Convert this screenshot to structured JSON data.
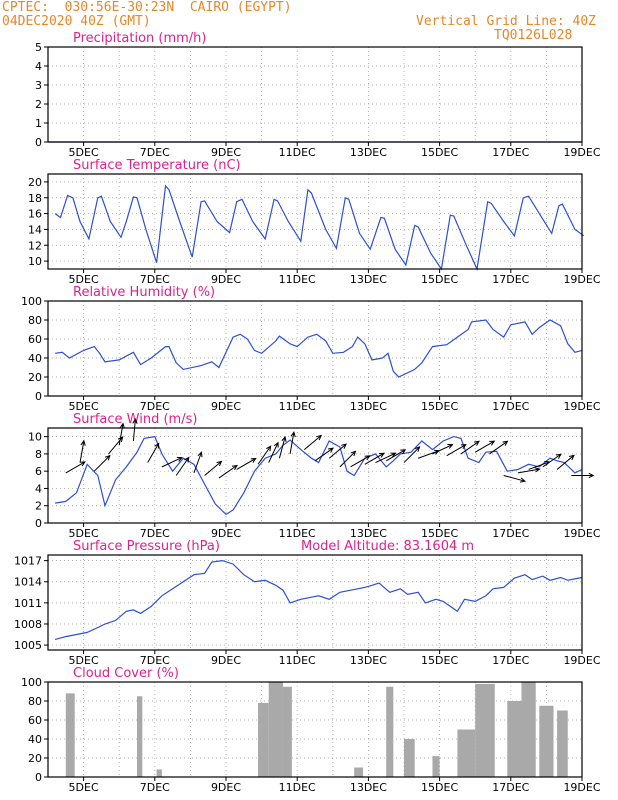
{
  "header": {
    "line1_left": "CPTEC:  030:56E-30:23N  CAIRO (EGYPT)",
    "line2_left": "04DEC2020 40Z (GMT)",
    "line1_right": "Vertical Grid Line: 40Z",
    "line2_right": "TQ0126L028"
  },
  "colors": {
    "header": "#e8862a",
    "title": "#e0208c",
    "line": "#2c4fd8",
    "bar": "#a9a9a9",
    "frame": "#000000"
  },
  "chart_data": [
    {
      "type": "line",
      "title": "Precipitation (mm/h)",
      "x_tick_labels": [
        "5DEC",
        "7DEC",
        "9DEC",
        "11DEC",
        "13DEC",
        "15DEC",
        "17DEC",
        "19DEC"
      ],
      "y_ticks": [
        0,
        1,
        2,
        3,
        4,
        5
      ],
      "ylim": [
        0,
        5
      ],
      "grid": true,
      "values": [
        0,
        0,
        0,
        0,
        0,
        0,
        0,
        0,
        0,
        0,
        0,
        0,
        0,
        0,
        0,
        0,
        0,
        0,
        0,
        0,
        0,
        0,
        0,
        0,
        0,
        0,
        0,
        0,
        0,
        0,
        0,
        0,
        0,
        0,
        0,
        0,
        0,
        0,
        0,
        0,
        0,
        0,
        0,
        0,
        0,
        0,
        0,
        0,
        0,
        0,
        0,
        0,
        0,
        0,
        0,
        0,
        0,
        0,
        0,
        0
      ]
    },
    {
      "type": "line",
      "title": "Surface Temperature (nC)",
      "x_tick_labels": [
        "5DEC",
        "7DEC",
        "9DEC",
        "11DEC",
        "13DEC",
        "15DEC",
        "17DEC",
        "19DEC"
      ],
      "y_ticks": [
        10,
        12,
        14,
        16,
        18,
        20
      ],
      "ylim": [
        9,
        21
      ],
      "grid": true,
      "points": [
        [
          4.2,
          16
        ],
        [
          4.35,
          15.5
        ],
        [
          4.55,
          18.3
        ],
        [
          4.7,
          18
        ],
        [
          4.9,
          15
        ],
        [
          5.15,
          12.8
        ],
        [
          5.4,
          18
        ],
        [
          5.5,
          18.2
        ],
        [
          5.75,
          15
        ],
        [
          6.05,
          13
        ],
        [
          6.2,
          15
        ],
        [
          6.4,
          18.1
        ],
        [
          6.5,
          18
        ],
        [
          6.75,
          14
        ],
        [
          7.05,
          9.8
        ],
        [
          7.3,
          19.5
        ],
        [
          7.4,
          19
        ],
        [
          7.7,
          15
        ],
        [
          8.05,
          10.5
        ],
        [
          8.3,
          17.5
        ],
        [
          8.4,
          17.6
        ],
        [
          8.75,
          15
        ],
        [
          9.1,
          13.6
        ],
        [
          9.3,
          17.5
        ],
        [
          9.45,
          17.8
        ],
        [
          9.75,
          15
        ],
        [
          10.1,
          12.8
        ],
        [
          10.35,
          17.8
        ],
        [
          10.45,
          17.6
        ],
        [
          10.75,
          15
        ],
        [
          11.1,
          12.5
        ],
        [
          11.3,
          19
        ],
        [
          11.4,
          18.6
        ],
        [
          11.8,
          14
        ],
        [
          12.1,
          11.6
        ],
        [
          12.35,
          18
        ],
        [
          12.45,
          17.8
        ],
        [
          12.75,
          13.5
        ],
        [
          13.05,
          11.5
        ],
        [
          13.35,
          15.5
        ],
        [
          13.45,
          15.4
        ],
        [
          13.75,
          11.5
        ],
        [
          14.05,
          9.5
        ],
        [
          14.3,
          14.5
        ],
        [
          14.4,
          14.3
        ],
        [
          14.75,
          11
        ],
        [
          15.05,
          8.8
        ],
        [
          15.3,
          15.8
        ],
        [
          15.4,
          15.7
        ],
        [
          15.75,
          12
        ],
        [
          16.05,
          9
        ],
        [
          16.35,
          17.5
        ],
        [
          16.45,
          17.3
        ],
        [
          16.8,
          15
        ],
        [
          17.1,
          13.2
        ],
        [
          17.35,
          18
        ],
        [
          17.5,
          18.2
        ],
        [
          17.8,
          16
        ],
        [
          18.15,
          13.5
        ],
        [
          18.35,
          17
        ],
        [
          18.45,
          17.2
        ],
        [
          18.8,
          14
        ],
        [
          19.05,
          13.2
        ]
      ]
    },
    {
      "type": "line",
      "title": "Relative Humidity (%)",
      "x_tick_labels": [
        "5DEC",
        "7DEC",
        "9DEC",
        "11DEC",
        "13DEC",
        "15DEC",
        "17DEC",
        "19DEC"
      ],
      "y_ticks": [
        0,
        20,
        40,
        60,
        80,
        100
      ],
      "ylim": [
        0,
        100
      ],
      "grid": true,
      "points": [
        [
          4.2,
          45
        ],
        [
          4.4,
          46
        ],
        [
          4.6,
          40
        ],
        [
          5,
          48
        ],
        [
          5.3,
          52
        ],
        [
          5.45,
          45
        ],
        [
          5.6,
          36
        ],
        [
          6.0,
          38
        ],
        [
          6.4,
          46
        ],
        [
          6.6,
          33
        ],
        [
          6.9,
          40
        ],
        [
          7.3,
          52
        ],
        [
          7.4,
          52
        ],
        [
          7.6,
          35
        ],
        [
          7.8,
          28
        ],
        [
          8.3,
          32
        ],
        [
          8.6,
          36
        ],
        [
          8.8,
          30
        ],
        [
          9.2,
          62
        ],
        [
          9.4,
          65
        ],
        [
          9.6,
          60
        ],
        [
          9.8,
          48
        ],
        [
          10.0,
          45
        ],
        [
          10.4,
          58
        ],
        [
          10.5,
          63
        ],
        [
          10.8,
          55
        ],
        [
          11.0,
          52
        ],
        [
          11.3,
          62
        ],
        [
          11.55,
          65
        ],
        [
          11.8,
          58
        ],
        [
          12.0,
          45
        ],
        [
          12.3,
          46
        ],
        [
          12.55,
          52
        ],
        [
          12.7,
          62
        ],
        [
          12.9,
          55
        ],
        [
          13.1,
          38
        ],
        [
          13.4,
          40
        ],
        [
          13.55,
          45
        ],
        [
          13.7,
          26
        ],
        [
          13.85,
          20
        ],
        [
          14.3,
          28
        ],
        [
          14.5,
          35
        ],
        [
          14.8,
          52
        ],
        [
          15.2,
          54
        ],
        [
          15.5,
          62
        ],
        [
          15.8,
          70
        ],
        [
          15.9,
          78
        ],
        [
          16.3,
          80
        ],
        [
          16.5,
          70
        ],
        [
          16.8,
          62
        ],
        [
          17.0,
          75
        ],
        [
          17.4,
          78
        ],
        [
          17.6,
          65
        ],
        [
          17.8,
          72
        ],
        [
          18.1,
          80
        ],
        [
          18.4,
          74
        ],
        [
          18.6,
          55
        ],
        [
          18.8,
          46
        ],
        [
          19.0,
          48
        ]
      ]
    },
    {
      "type": "line",
      "title": "Surface Wind (m/s)",
      "x_tick_labels": [
        "5DEC",
        "7DEC",
        "9DEC",
        "11DEC",
        "13DEC",
        "15DEC",
        "17DEC",
        "19DEC"
      ],
      "y_ticks": [
        0,
        2,
        4,
        6,
        8,
        10
      ],
      "ylim": [
        0,
        11
      ],
      "grid": true,
      "points": [
        [
          4.2,
          2.3
        ],
        [
          4.5,
          2.5
        ],
        [
          4.8,
          3.5
        ],
        [
          5.1,
          6.8
        ],
        [
          5.4,
          5.5
        ],
        [
          5.6,
          2
        ],
        [
          5.9,
          5
        ],
        [
          6.2,
          6.5
        ],
        [
          6.5,
          8.2
        ],
        [
          6.7,
          9.8
        ],
        [
          7.0,
          10
        ],
        [
          7.2,
          8
        ],
        [
          7.5,
          6
        ],
        [
          7.8,
          7.5
        ],
        [
          8.1,
          6.8
        ],
        [
          8.4,
          4.5
        ],
        [
          8.7,
          2.2
        ],
        [
          9.0,
          1
        ],
        [
          9.2,
          1.5
        ],
        [
          9.5,
          3.5
        ],
        [
          9.8,
          6
        ],
        [
          10.1,
          7.5
        ],
        [
          10.4,
          8
        ],
        [
          10.6,
          9
        ],
        [
          10.8,
          9.6
        ],
        [
          11.1,
          8.5
        ],
        [
          11.4,
          7.5
        ],
        [
          11.6,
          7
        ],
        [
          11.9,
          9.5
        ],
        [
          12.2,
          8.8
        ],
        [
          12.4,
          6
        ],
        [
          12.6,
          5.5
        ],
        [
          12.9,
          7.5
        ],
        [
          13.2,
          8
        ],
        [
          13.5,
          6.5
        ],
        [
          13.7,
          7.2
        ],
        [
          13.9,
          8
        ],
        [
          14.2,
          8.2
        ],
        [
          14.5,
          9.5
        ],
        [
          14.8,
          8.5
        ],
        [
          15.1,
          9.5
        ],
        [
          15.4,
          10
        ],
        [
          15.6,
          9.8
        ],
        [
          15.8,
          7.5
        ],
        [
          16.1,
          7
        ],
        [
          16.3,
          8.2
        ],
        [
          16.6,
          8.3
        ],
        [
          16.9,
          6
        ],
        [
          17.2,
          6.2
        ],
        [
          17.5,
          6.8
        ],
        [
          17.8,
          6.5
        ],
        [
          18.1,
          7.5
        ],
        [
          18.3,
          7.2
        ],
        [
          18.5,
          7
        ],
        [
          18.8,
          5.8
        ],
        [
          19.0,
          6.2
        ]
      ],
      "vectors": [
        [
          4.5,
          5.8,
          30
        ],
        [
          4.9,
          7,
          80
        ],
        [
          5.3,
          6,
          45
        ],
        [
          5.7,
          8,
          50
        ],
        [
          6.0,
          9,
          80
        ],
        [
          6.4,
          9.5,
          85
        ],
        [
          6.8,
          7,
          60
        ],
        [
          7.2,
          6.5,
          25
        ],
        [
          7.6,
          5.5,
          55
        ],
        [
          8.1,
          5.8,
          70
        ],
        [
          8.4,
          5.5,
          40
        ],
        [
          8.8,
          5.2,
          35
        ],
        [
          9.3,
          6.2,
          30
        ],
        [
          9.9,
          6.8,
          55
        ],
        [
          10.2,
          7,
          65
        ],
        [
          10.5,
          7.5,
          75
        ],
        [
          10.8,
          8,
          80
        ],
        [
          11.2,
          8.5,
          40
        ],
        [
          11.5,
          7.2,
          35
        ],
        [
          11.9,
          7.5,
          40
        ],
        [
          12.2,
          6.5,
          45
        ],
        [
          12.5,
          6.5,
          30
        ],
        [
          12.9,
          6.8,
          30
        ],
        [
          13.2,
          7,
          25
        ],
        [
          13.5,
          7.2,
          30
        ],
        [
          14.0,
          7,
          45
        ],
        [
          14.4,
          7.5,
          20
        ],
        [
          14.8,
          8,
          25
        ],
        [
          15.2,
          7.8,
          30
        ],
        [
          15.6,
          8,
          35
        ],
        [
          16.0,
          8.2,
          30
        ],
        [
          16.4,
          8,
          35
        ],
        [
          16.8,
          5.5,
          -15
        ],
        [
          17.2,
          5.8,
          10
        ],
        [
          17.5,
          6.2,
          20
        ],
        [
          17.9,
          6.5,
          35
        ],
        [
          18.3,
          6.2,
          40
        ],
        [
          18.7,
          5.5,
          0
        ]
      ]
    },
    {
      "type": "line",
      "title": "Surface Pressure (hPa)",
      "annotation": "Model Altitude: 83.1604 m",
      "x_tick_labels": [
        "5DEC",
        "7DEC",
        "9DEC",
        "11DEC",
        "13DEC",
        "15DEC",
        "17DEC",
        "19DEC"
      ],
      "y_ticks": [
        1005,
        1008,
        1011,
        1014,
        1017
      ],
      "ylim": [
        1004.3,
        1017.8
      ],
      "grid": true,
      "points": [
        [
          4.2,
          1005.8
        ],
        [
          4.5,
          1006.2
        ],
        [
          4.8,
          1006.5
        ],
        [
          5.1,
          1006.8
        ],
        [
          5.4,
          1007.5
        ],
        [
          5.6,
          1008
        ],
        [
          5.9,
          1008.5
        ],
        [
          6.2,
          1009.8
        ],
        [
          6.4,
          1010
        ],
        [
          6.6,
          1009.5
        ],
        [
          6.9,
          1010.5
        ],
        [
          7.2,
          1012
        ],
        [
          7.5,
          1013
        ],
        [
          7.8,
          1014
        ],
        [
          8.1,
          1015
        ],
        [
          8.4,
          1015.2
        ],
        [
          8.6,
          1016.8
        ],
        [
          8.9,
          1017
        ],
        [
          9.2,
          1016.5
        ],
        [
          9.5,
          1015
        ],
        [
          9.8,
          1014
        ],
        [
          10.1,
          1014.2
        ],
        [
          10.4,
          1013.5
        ],
        [
          10.6,
          1012.8
        ],
        [
          10.8,
          1011
        ],
        [
          11.1,
          1011.5
        ],
        [
          11.4,
          1011.8
        ],
        [
          11.6,
          1012
        ],
        [
          11.9,
          1011.5
        ],
        [
          12.2,
          1012.5
        ],
        [
          12.5,
          1012.8
        ],
        [
          12.7,
          1013
        ],
        [
          12.9,
          1013.2
        ],
        [
          13.1,
          1013.5
        ],
        [
          13.3,
          1013.8
        ],
        [
          13.6,
          1012.5
        ],
        [
          13.9,
          1013
        ],
        [
          14.1,
          1012.2
        ],
        [
          14.4,
          1012.5
        ],
        [
          14.6,
          1011
        ],
        [
          14.9,
          1011.5
        ],
        [
          15.1,
          1011.2
        ],
        [
          15.3,
          1010.5
        ],
        [
          15.5,
          1009.8
        ],
        [
          15.7,
          1011.5
        ],
        [
          16.0,
          1011.2
        ],
        [
          16.3,
          1012
        ],
        [
          16.5,
          1013
        ],
        [
          16.8,
          1013.2
        ],
        [
          17.1,
          1014.5
        ],
        [
          17.4,
          1015
        ],
        [
          17.6,
          1014.3
        ],
        [
          17.9,
          1014.8
        ],
        [
          18.1,
          1014.2
        ],
        [
          18.4,
          1014.6
        ],
        [
          18.6,
          1014.2
        ],
        [
          18.8,
          1014.4
        ],
        [
          19.0,
          1014.6
        ]
      ]
    },
    {
      "type": "bar",
      "title": "Cloud Cover (%)",
      "x_tick_labels": [
        "5DEC",
        "7DEC",
        "9DEC",
        "11DEC",
        "13DEC",
        "15DEC",
        "17DEC",
        "19DEC"
      ],
      "y_ticks": [
        0,
        20,
        40,
        60,
        80,
        100
      ],
      "ylim": [
        0,
        100
      ],
      "grid": true,
      "segments": [
        [
          4.5,
          4.75,
          88
        ],
        [
          6.5,
          6.65,
          85
        ],
        [
          7.05,
          7.2,
          8
        ],
        [
          9.9,
          10.2,
          78
        ],
        [
          10.2,
          10.6,
          100
        ],
        [
          10.6,
          10.85,
          95
        ],
        [
          12.6,
          12.85,
          10
        ],
        [
          13.5,
          13.7,
          95
        ],
        [
          14.0,
          14.3,
          40
        ],
        [
          14.8,
          15.0,
          22
        ],
        [
          15.5,
          16.0,
          50
        ],
        [
          16.0,
          16.55,
          98
        ],
        [
          16.9,
          17.3,
          80
        ],
        [
          17.3,
          17.7,
          100
        ],
        [
          17.8,
          18.2,
          75
        ],
        [
          18.3,
          18.6,
          70
        ]
      ]
    }
  ]
}
